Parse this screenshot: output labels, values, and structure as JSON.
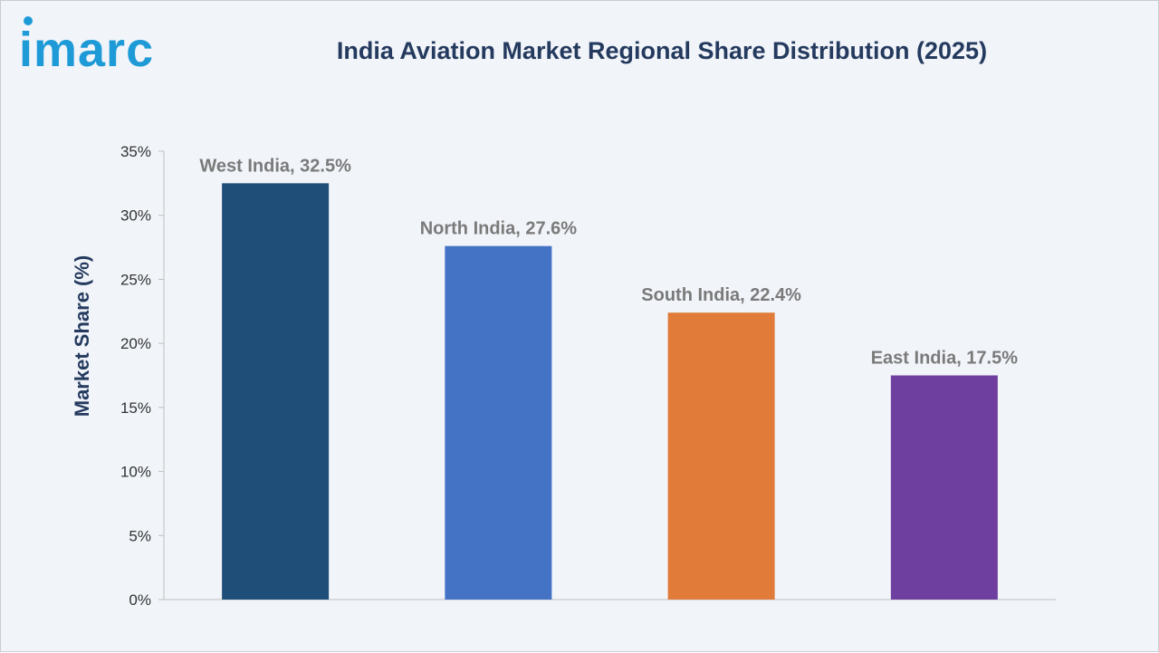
{
  "brand": {
    "logo_text": "imarc",
    "logo_color": "#1e9bd7"
  },
  "chart_data": {
    "type": "bar",
    "title": "India Aviation Market Regional Share Distribution (2025)",
    "xlabel": "",
    "ylabel": "Market Share (%)",
    "ylim": [
      0,
      35
    ],
    "y_ticks": [
      0,
      5,
      10,
      15,
      20,
      25,
      30,
      35
    ],
    "y_tick_suffix": "%",
    "grid": false,
    "categories": [
      "West India",
      "North India",
      "South India",
      "East India"
    ],
    "values": [
      32.5,
      27.6,
      22.4,
      17.5
    ],
    "data_labels": [
      "West India, 32.5%",
      "North India, 27.6%",
      "South India, 22.4%",
      "East India, 17.5%"
    ],
    "colors": [
      "#1f4e79",
      "#4472c4",
      "#e07b39",
      "#6f3fa0"
    ]
  }
}
